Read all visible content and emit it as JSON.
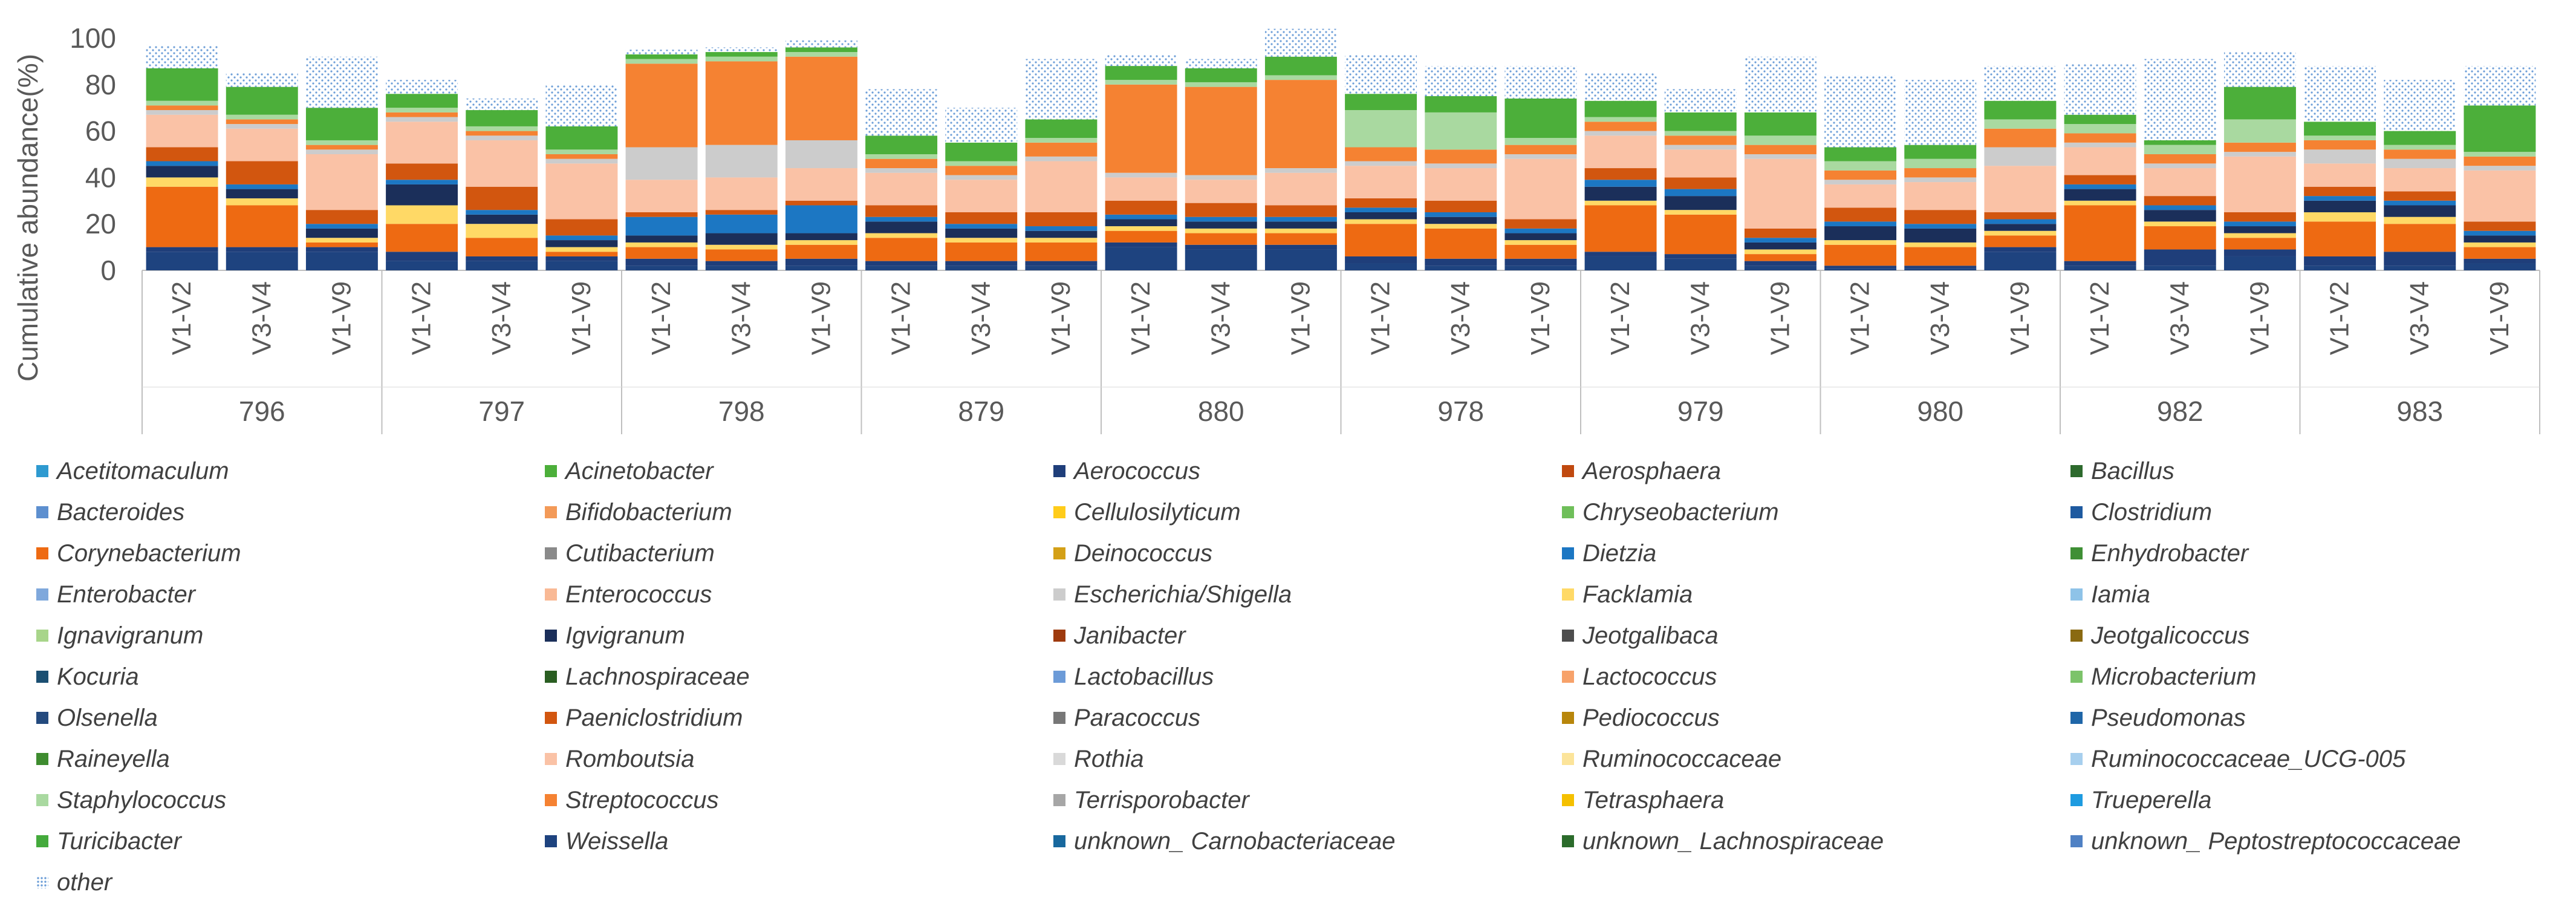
{
  "chart_data": {
    "type": "bar",
    "stacked": true,
    "ylabel": "Cumulative abundance(%)",
    "ylim": [
      0,
      100
    ],
    "yticks": [
      "0",
      "20",
      "40",
      "60",
      "80",
      "100"
    ],
    "group_labels": [
      "796",
      "797",
      "798",
      "879",
      "880",
      "978",
      "979",
      "980",
      "982",
      "983"
    ],
    "sub_labels": [
      "V1-V2",
      "V3-V4",
      "V1-V9"
    ],
    "legend": [
      {
        "name": "Acetitomaculum",
        "color": "#2E9AD0"
      },
      {
        "name": "Acinetobacter",
        "color": "#4CAF3A"
      },
      {
        "name": "Aerococcus",
        "color": "#1F3E7A"
      },
      {
        "name": "Aerosphaera",
        "color": "#C0490F"
      },
      {
        "name": "Bacillus",
        "color": "#2D6A2D"
      },
      {
        "name": "Bacteroides",
        "color": "#5D8FCF"
      },
      {
        "name": "Bifidobacterium",
        "color": "#F39A58"
      },
      {
        "name": "Cellulosilyticum",
        "color": "#FFCC1A"
      },
      {
        "name": "Chryseobacterium",
        "color": "#6FBF5A"
      },
      {
        "name": "Clostridium",
        "color": "#1E5AA0"
      },
      {
        "name": "Corynebacterium",
        "color": "#EE6A12"
      },
      {
        "name": "Cutibacterium",
        "color": "#8A8A8A"
      },
      {
        "name": "Deinococcus",
        "color": "#D4A017"
      },
      {
        "name": "Dietzia",
        "color": "#1C77C3"
      },
      {
        "name": "Enhydrobacter",
        "color": "#3F8F35"
      },
      {
        "name": "Enterobacter",
        "color": "#7FA8DC"
      },
      {
        "name": "Enterococcus",
        "color": "#F9B995"
      },
      {
        "name": "Escherichia/Shigella",
        "color": "#CCCCCC"
      },
      {
        "name": "Facklamia",
        "color": "#FFD966"
      },
      {
        "name": "Iamia",
        "color": "#8EC3E8"
      },
      {
        "name": "Ignavigranum",
        "color": "#A8D58A"
      },
      {
        "name": "Igvigranum",
        "color": "#1B2F5A"
      },
      {
        "name": "Janibacter",
        "color": "#9E3A0E"
      },
      {
        "name": "Jeotgalibaca",
        "color": "#4D4D4D"
      },
      {
        "name": "Jeotgalicoccus",
        "color": "#8A6A12"
      },
      {
        "name": "Kocuria",
        "color": "#1B4F72"
      },
      {
        "name": "Lachnospiraceae",
        "color": "#2A5E22"
      },
      {
        "name": "Lactobacillus",
        "color": "#6C9BD8"
      },
      {
        "name": "Lactococcus",
        "color": "#F7A26A"
      },
      {
        "name": "Microbacterium",
        "color": "#7CC36A"
      },
      {
        "name": "Olsenella",
        "color": "#244A7E"
      },
      {
        "name": "Paeniclostridium",
        "color": "#D2560F"
      },
      {
        "name": "Paracoccus",
        "color": "#777777"
      },
      {
        "name": "Pediococcus",
        "color": "#B8860B"
      },
      {
        "name": "Pseudomonas",
        "color": "#1F66A8"
      },
      {
        "name": "Raineyella",
        "color": "#3E8C2F"
      },
      {
        "name": "Romboutsia",
        "color": "#FAC2A6"
      },
      {
        "name": "Rothia",
        "color": "#D9D9D9"
      },
      {
        "name": "Ruminococcaceae",
        "color": "#FCE49A"
      },
      {
        "name": "Ruminococcaceae_UCG-005",
        "color": "#A7CFEE"
      },
      {
        "name": "Staphylococcus",
        "color": "#A9D9A0"
      },
      {
        "name": "Streptococcus",
        "color": "#F58232"
      },
      {
        "name": "Terrisporobacter",
        "color": "#A6A6A6"
      },
      {
        "name": "Tetrasphaera",
        "color": "#F5C000"
      },
      {
        "name": "Trueperella",
        "color": "#1E9BE0"
      },
      {
        "name": "Turicibacter",
        "color": "#44AA3C"
      },
      {
        "name": "Weissella",
        "color": "#1E437F"
      },
      {
        "name": "unknown_ Carnobacteriaceae",
        "color": "#18689E"
      },
      {
        "name": "unknown_ Lachnospiraceae",
        "color": "#2B6B2B"
      },
      {
        "name": "unknown_ Peptostreptococcaceae",
        "color": "#4F81C4"
      },
      {
        "name": "other",
        "color": "#A9C6EE"
      }
    ],
    "series": [
      {
        "name": "Weissella",
        "values": [
          8,
          8,
          8,
          4,
          4,
          4,
          2,
          2,
          2,
          2,
          2,
          2,
          10,
          9,
          9,
          3,
          2,
          2,
          6,
          5,
          2,
          1,
          1,
          8,
          2,
          2,
          6,
          2,
          2,
          3
        ]
      },
      {
        "name": "Aerococcus",
        "values": [
          2,
          2,
          2,
          4,
          2,
          2,
          3,
          2,
          3,
          2,
          2,
          2,
          2,
          2,
          2,
          3,
          3,
          3,
          2,
          2,
          2,
          1,
          1,
          2,
          2,
          7,
          3,
          4,
          6,
          2
        ]
      },
      {
        "name": "Corynebacterium",
        "values": [
          26,
          18,
          2,
          12,
          8,
          2,
          5,
          5,
          6,
          10,
          8,
          8,
          5,
          5,
          5,
          14,
          13,
          6,
          20,
          17,
          3,
          9,
          8,
          5,
          24,
          10,
          5,
          15,
          12,
          5
        ]
      },
      {
        "name": "Facklamia",
        "values": [
          4,
          3,
          2,
          8,
          6,
          2,
          2,
          2,
          2,
          2,
          2,
          2,
          2,
          2,
          2,
          2,
          2,
          2,
          2,
          2,
          2,
          2,
          2,
          2,
          2,
          2,
          2,
          4,
          3,
          2
        ]
      },
      {
        "name": "Igvigranum",
        "values": [
          5,
          4,
          4,
          9,
          4,
          3,
          3,
          5,
          3,
          5,
          4,
          3,
          3,
          3,
          3,
          3,
          3,
          3,
          6,
          6,
          3,
          6,
          6,
          3,
          5,
          5,
          3,
          5,
          5,
          3
        ]
      },
      {
        "name": "Dietzia",
        "values": [
          2,
          2,
          2,
          2,
          2,
          2,
          8,
          8,
          12,
          2,
          2,
          2,
          2,
          2,
          2,
          2,
          2,
          2,
          3,
          3,
          2,
          2,
          2,
          2,
          2,
          2,
          2,
          2,
          2,
          2
        ]
      },
      {
        "name": "Paeniclostridium",
        "values": [
          6,
          10,
          6,
          7,
          10,
          7,
          2,
          2,
          2,
          5,
          5,
          6,
          6,
          6,
          5,
          4,
          5,
          4,
          5,
          5,
          4,
          6,
          6,
          3,
          4,
          4,
          4,
          4,
          4,
          4
        ]
      },
      {
        "name": "Romboutsia",
        "values": [
          14,
          14,
          24,
          18,
          20,
          24,
          14,
          14,
          14,
          14,
          14,
          22,
          10,
          10,
          14,
          14,
          14,
          26,
          14,
          12,
          30,
          10,
          12,
          20,
          12,
          12,
          24,
          10,
          10,
          22
        ]
      },
      {
        "name": "Escherichia/Shigella",
        "values": [
          2,
          2,
          2,
          2,
          2,
          2,
          14,
          14,
          12,
          2,
          2,
          2,
          2,
          2,
          2,
          2,
          2,
          2,
          2,
          2,
          2,
          2,
          2,
          8,
          2,
          2,
          2,
          6,
          4,
          2
        ]
      },
      {
        "name": "Streptococcus",
        "values": [
          2,
          2,
          2,
          2,
          2,
          2,
          36,
          36,
          36,
          4,
          4,
          6,
          38,
          38,
          38,
          6,
          6,
          4,
          4,
          4,
          4,
          4,
          4,
          8,
          4,
          4,
          4,
          4,
          4,
          4
        ]
      },
      {
        "name": "Staphylococcus",
        "values": [
          2,
          2,
          2,
          2,
          2,
          2,
          2,
          2,
          2,
          2,
          2,
          2,
          2,
          2,
          2,
          16,
          16,
          3,
          2,
          2,
          4,
          4,
          4,
          4,
          4,
          4,
          10,
          2,
          2,
          2
        ]
      },
      {
        "name": "Acinetobacter",
        "values": [
          14,
          12,
          14,
          6,
          7,
          10,
          2,
          2,
          2,
          8,
          8,
          8,
          6,
          6,
          8,
          7,
          7,
          17,
          7,
          8,
          10,
          6,
          6,
          8,
          4,
          2,
          14,
          6,
          6,
          20
        ]
      },
      {
        "name": "other",
        "values": [
          10,
          6,
          22,
          6,
          5,
          18,
          2,
          2,
          3,
          20,
          15,
          26,
          5,
          4,
          12,
          17,
          13,
          14,
          12,
          10,
          24,
          31,
          28,
          15,
          22,
          35,
          15,
          24,
          22,
          17
        ]
      }
    ]
  }
}
